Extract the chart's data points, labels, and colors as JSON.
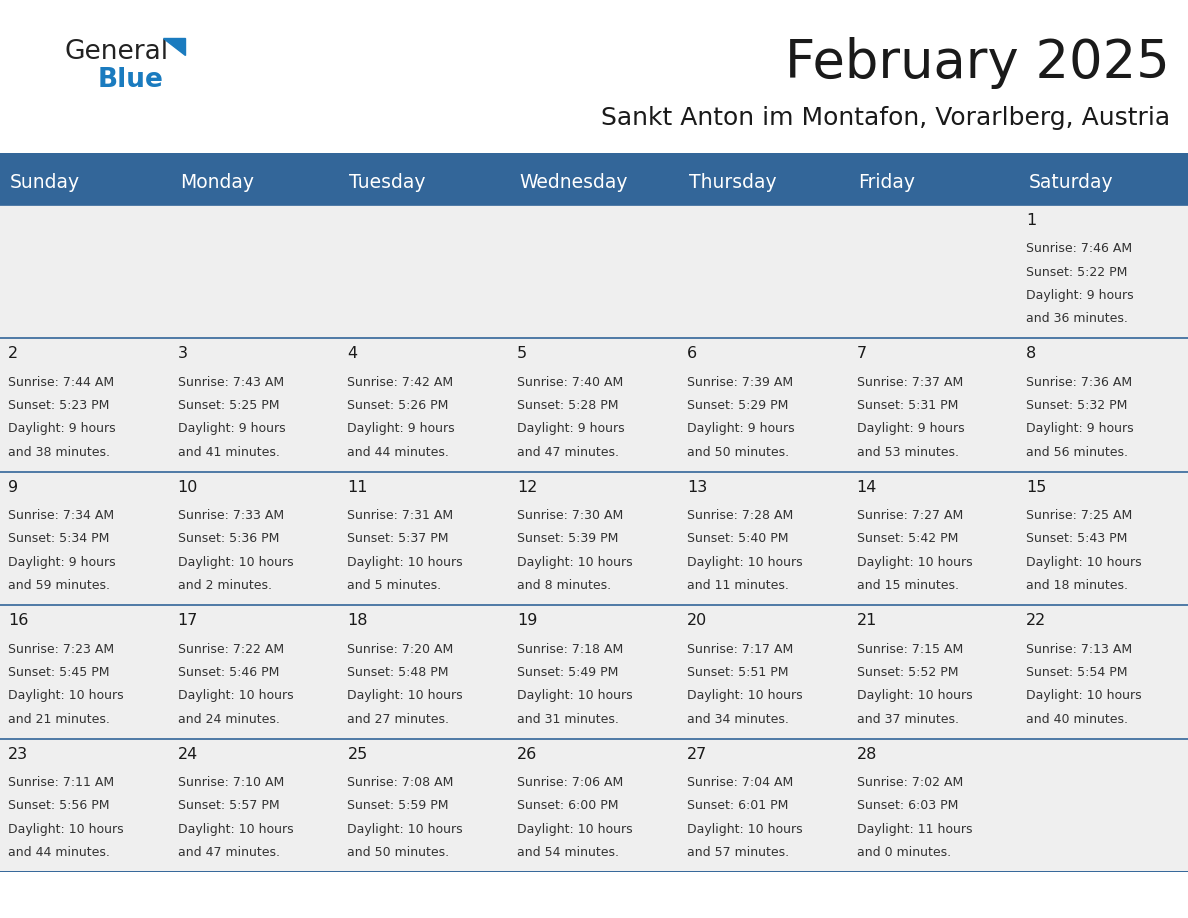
{
  "title": "February 2025",
  "subtitle": "Sankt Anton im Montafon, Vorarlberg, Austria",
  "header_color": "#336699",
  "header_text_color": "#ffffff",
  "cell_bg_color": "#efefef",
  "border_color": "#336699",
  "day_names": [
    "Sunday",
    "Monday",
    "Tuesday",
    "Wednesday",
    "Thursday",
    "Friday",
    "Saturday"
  ],
  "title_color": "#1a1a1a",
  "subtitle_color": "#1a1a1a",
  "days": [
    {
      "day": 1,
      "col": 6,
      "row": 0,
      "sunrise": "7:46 AM",
      "sunset": "5:22 PM",
      "daylight_line1": "Daylight: 9 hours",
      "daylight_line2": "and 36 minutes."
    },
    {
      "day": 2,
      "col": 0,
      "row": 1,
      "sunrise": "7:44 AM",
      "sunset": "5:23 PM",
      "daylight_line1": "Daylight: 9 hours",
      "daylight_line2": "and 38 minutes."
    },
    {
      "day": 3,
      "col": 1,
      "row": 1,
      "sunrise": "7:43 AM",
      "sunset": "5:25 PM",
      "daylight_line1": "Daylight: 9 hours",
      "daylight_line2": "and 41 minutes."
    },
    {
      "day": 4,
      "col": 2,
      "row": 1,
      "sunrise": "7:42 AM",
      "sunset": "5:26 PM",
      "daylight_line1": "Daylight: 9 hours",
      "daylight_line2": "and 44 minutes."
    },
    {
      "day": 5,
      "col": 3,
      "row": 1,
      "sunrise": "7:40 AM",
      "sunset": "5:28 PM",
      "daylight_line1": "Daylight: 9 hours",
      "daylight_line2": "and 47 minutes."
    },
    {
      "day": 6,
      "col": 4,
      "row": 1,
      "sunrise": "7:39 AM",
      "sunset": "5:29 PM",
      "daylight_line1": "Daylight: 9 hours",
      "daylight_line2": "and 50 minutes."
    },
    {
      "day": 7,
      "col": 5,
      "row": 1,
      "sunrise": "7:37 AM",
      "sunset": "5:31 PM",
      "daylight_line1": "Daylight: 9 hours",
      "daylight_line2": "and 53 minutes."
    },
    {
      "day": 8,
      "col": 6,
      "row": 1,
      "sunrise": "7:36 AM",
      "sunset": "5:32 PM",
      "daylight_line1": "Daylight: 9 hours",
      "daylight_line2": "and 56 minutes."
    },
    {
      "day": 9,
      "col": 0,
      "row": 2,
      "sunrise": "7:34 AM",
      "sunset": "5:34 PM",
      "daylight_line1": "Daylight: 9 hours",
      "daylight_line2": "and 59 minutes."
    },
    {
      "day": 10,
      "col": 1,
      "row": 2,
      "sunrise": "7:33 AM",
      "sunset": "5:36 PM",
      "daylight_line1": "Daylight: 10 hours",
      "daylight_line2": "and 2 minutes."
    },
    {
      "day": 11,
      "col": 2,
      "row": 2,
      "sunrise": "7:31 AM",
      "sunset": "5:37 PM",
      "daylight_line1": "Daylight: 10 hours",
      "daylight_line2": "and 5 minutes."
    },
    {
      "day": 12,
      "col": 3,
      "row": 2,
      "sunrise": "7:30 AM",
      "sunset": "5:39 PM",
      "daylight_line1": "Daylight: 10 hours",
      "daylight_line2": "and 8 minutes."
    },
    {
      "day": 13,
      "col": 4,
      "row": 2,
      "sunrise": "7:28 AM",
      "sunset": "5:40 PM",
      "daylight_line1": "Daylight: 10 hours",
      "daylight_line2": "and 11 minutes."
    },
    {
      "day": 14,
      "col": 5,
      "row": 2,
      "sunrise": "7:27 AM",
      "sunset": "5:42 PM",
      "daylight_line1": "Daylight: 10 hours",
      "daylight_line2": "and 15 minutes."
    },
    {
      "day": 15,
      "col": 6,
      "row": 2,
      "sunrise": "7:25 AM",
      "sunset": "5:43 PM",
      "daylight_line1": "Daylight: 10 hours",
      "daylight_line2": "and 18 minutes."
    },
    {
      "day": 16,
      "col": 0,
      "row": 3,
      "sunrise": "7:23 AM",
      "sunset": "5:45 PM",
      "daylight_line1": "Daylight: 10 hours",
      "daylight_line2": "and 21 minutes."
    },
    {
      "day": 17,
      "col": 1,
      "row": 3,
      "sunrise": "7:22 AM",
      "sunset": "5:46 PM",
      "daylight_line1": "Daylight: 10 hours",
      "daylight_line2": "and 24 minutes."
    },
    {
      "day": 18,
      "col": 2,
      "row": 3,
      "sunrise": "7:20 AM",
      "sunset": "5:48 PM",
      "daylight_line1": "Daylight: 10 hours",
      "daylight_line2": "and 27 minutes."
    },
    {
      "day": 19,
      "col": 3,
      "row": 3,
      "sunrise": "7:18 AM",
      "sunset": "5:49 PM",
      "daylight_line1": "Daylight: 10 hours",
      "daylight_line2": "and 31 minutes."
    },
    {
      "day": 20,
      "col": 4,
      "row": 3,
      "sunrise": "7:17 AM",
      "sunset": "5:51 PM",
      "daylight_line1": "Daylight: 10 hours",
      "daylight_line2": "and 34 minutes."
    },
    {
      "day": 21,
      "col": 5,
      "row": 3,
      "sunrise": "7:15 AM",
      "sunset": "5:52 PM",
      "daylight_line1": "Daylight: 10 hours",
      "daylight_line2": "and 37 minutes."
    },
    {
      "day": 22,
      "col": 6,
      "row": 3,
      "sunrise": "7:13 AM",
      "sunset": "5:54 PM",
      "daylight_line1": "Daylight: 10 hours",
      "daylight_line2": "and 40 minutes."
    },
    {
      "day": 23,
      "col": 0,
      "row": 4,
      "sunrise": "7:11 AM",
      "sunset": "5:56 PM",
      "daylight_line1": "Daylight: 10 hours",
      "daylight_line2": "and 44 minutes."
    },
    {
      "day": 24,
      "col": 1,
      "row": 4,
      "sunrise": "7:10 AM",
      "sunset": "5:57 PM",
      "daylight_line1": "Daylight: 10 hours",
      "daylight_line2": "and 47 minutes."
    },
    {
      "day": 25,
      "col": 2,
      "row": 4,
      "sunrise": "7:08 AM",
      "sunset": "5:59 PM",
      "daylight_line1": "Daylight: 10 hours",
      "daylight_line2": "and 50 minutes."
    },
    {
      "day": 26,
      "col": 3,
      "row": 4,
      "sunrise": "7:06 AM",
      "sunset": "6:00 PM",
      "daylight_line1": "Daylight: 10 hours",
      "daylight_line2": "and 54 minutes."
    },
    {
      "day": 27,
      "col": 4,
      "row": 4,
      "sunrise": "7:04 AM",
      "sunset": "6:01 PM",
      "daylight_line1": "Daylight: 10 hours",
      "daylight_line2": "and 57 minutes."
    },
    {
      "day": 28,
      "col": 5,
      "row": 4,
      "sunrise": "7:02 AM",
      "sunset": "6:03 PM",
      "daylight_line1": "Daylight: 11 hours",
      "daylight_line2": "and 0 minutes."
    }
  ],
  "num_rows": 5,
  "logo_text_general": "General",
  "logo_text_blue": "Blue",
  "logo_color_general": "#222222",
  "logo_color_blue": "#1a7bbf",
  "logo_triangle_color": "#1a7bbf",
  "fig_width": 11.88,
  "fig_height": 9.18,
  "dpi": 100
}
